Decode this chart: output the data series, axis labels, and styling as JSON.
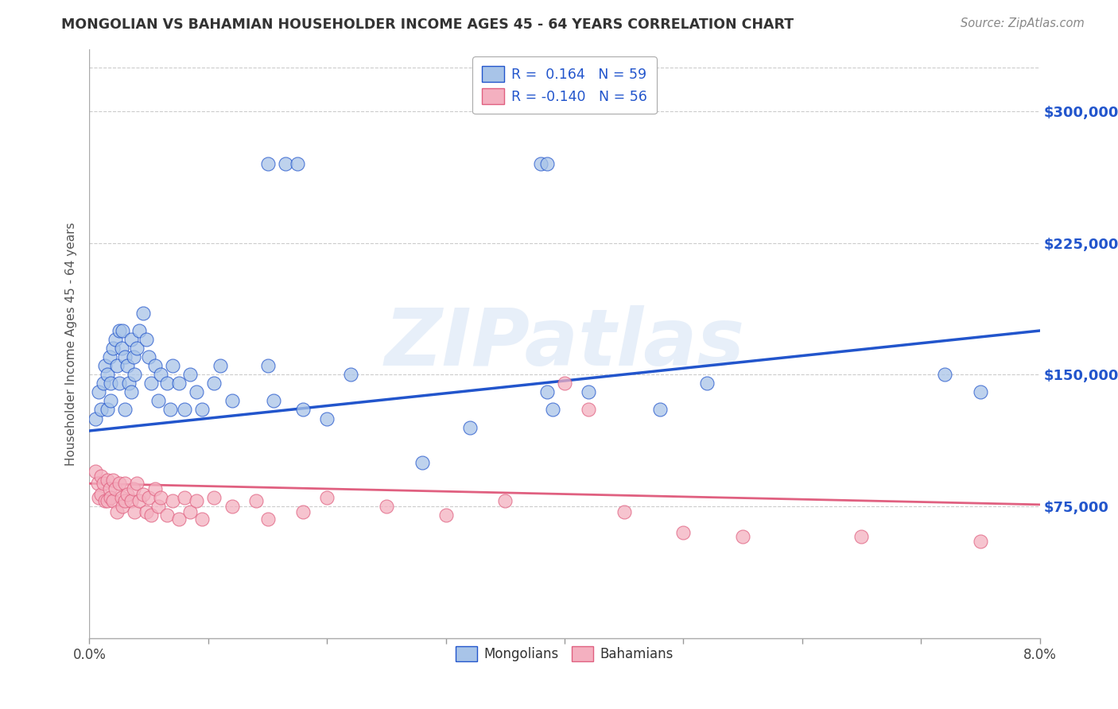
{
  "title": "MONGOLIAN VS BAHAMIAN HOUSEHOLDER INCOME AGES 45 - 64 YEARS CORRELATION CHART",
  "source": "Source: ZipAtlas.com",
  "ylabel_label": "Householder Income Ages 45 - 64 years",
  "ytick_labels": [
    "$75,000",
    "$150,000",
    "$225,000",
    "$300,000"
  ],
  "ytick_values": [
    75000,
    150000,
    225000,
    300000
  ],
  "xmin": 0.0,
  "xmax": 8.0,
  "ymin": 0,
  "ymax": 335000,
  "mongolian_color": "#a8c4e8",
  "bahamian_color": "#f4b0c0",
  "line_mongolian_color": "#2255cc",
  "line_bahamian_color": "#e06080",
  "mongolian_x": [
    0.05,
    0.08,
    0.1,
    0.12,
    0.13,
    0.15,
    0.15,
    0.17,
    0.18,
    0.18,
    0.2,
    0.22,
    0.23,
    0.25,
    0.25,
    0.27,
    0.28,
    0.3,
    0.3,
    0.32,
    0.33,
    0.35,
    0.35,
    0.37,
    0.38,
    0.4,
    0.42,
    0.45,
    0.48,
    0.5,
    0.52,
    0.55,
    0.58,
    0.6,
    0.65,
    0.68,
    0.7,
    0.75,
    0.8,
    0.85,
    0.9,
    0.95,
    1.05,
    1.1,
    1.2,
    1.5,
    1.55,
    1.8,
    2.0,
    2.2,
    2.8,
    3.2,
    3.85,
    3.9,
    4.2,
    4.8,
    5.2,
    7.2,
    7.5
  ],
  "mongolian_y": [
    125000,
    140000,
    130000,
    145000,
    155000,
    150000,
    130000,
    160000,
    145000,
    135000,
    165000,
    170000,
    155000,
    175000,
    145000,
    165000,
    175000,
    160000,
    130000,
    155000,
    145000,
    170000,
    140000,
    160000,
    150000,
    165000,
    175000,
    185000,
    170000,
    160000,
    145000,
    155000,
    135000,
    150000,
    145000,
    130000,
    155000,
    145000,
    130000,
    150000,
    140000,
    130000,
    145000,
    155000,
    135000,
    155000,
    135000,
    130000,
    125000,
    150000,
    100000,
    120000,
    140000,
    130000,
    140000,
    130000,
    145000,
    150000,
    140000
  ],
  "mongolian_outlier_x": [
    1.5,
    1.65,
    1.75,
    3.8,
    3.85
  ],
  "mongolian_outlier_y": [
    270000,
    270000,
    270000,
    270000,
    270000
  ],
  "bahamian_x": [
    0.05,
    0.07,
    0.08,
    0.1,
    0.1,
    0.12,
    0.13,
    0.15,
    0.15,
    0.17,
    0.18,
    0.2,
    0.2,
    0.22,
    0.23,
    0.25,
    0.27,
    0.28,
    0.3,
    0.3,
    0.32,
    0.35,
    0.37,
    0.38,
    0.4,
    0.42,
    0.45,
    0.48,
    0.5,
    0.52,
    0.55,
    0.58,
    0.6,
    0.65,
    0.7,
    0.75,
    0.8,
    0.85,
    0.9,
    0.95,
    1.05,
    1.2,
    1.4,
    1.5,
    1.8,
    2.0,
    2.5,
    3.0,
    3.5,
    4.0,
    4.2,
    4.5,
    5.0,
    5.5,
    6.5,
    7.5
  ],
  "bahamian_y": [
    95000,
    88000,
    80000,
    92000,
    82000,
    88000,
    78000,
    90000,
    78000,
    85000,
    80000,
    90000,
    78000,
    85000,
    72000,
    88000,
    80000,
    75000,
    88000,
    78000,
    82000,
    78000,
    85000,
    72000,
    88000,
    78000,
    82000,
    72000,
    80000,
    70000,
    85000,
    75000,
    80000,
    70000,
    78000,
    68000,
    80000,
    72000,
    78000,
    68000,
    80000,
    75000,
    78000,
    68000,
    72000,
    80000,
    75000,
    70000,
    78000,
    145000,
    130000,
    72000,
    60000,
    58000,
    58000,
    55000
  ],
  "blue_line_x": [
    0.0,
    8.0
  ],
  "blue_line_y": [
    118000,
    175000
  ],
  "pink_line_x": [
    0.0,
    8.0
  ],
  "pink_line_y": [
    88000,
    76000
  ],
  "watermark": "ZIPatlas",
  "background_color": "#ffffff",
  "gridline_color": "#cccccc"
}
